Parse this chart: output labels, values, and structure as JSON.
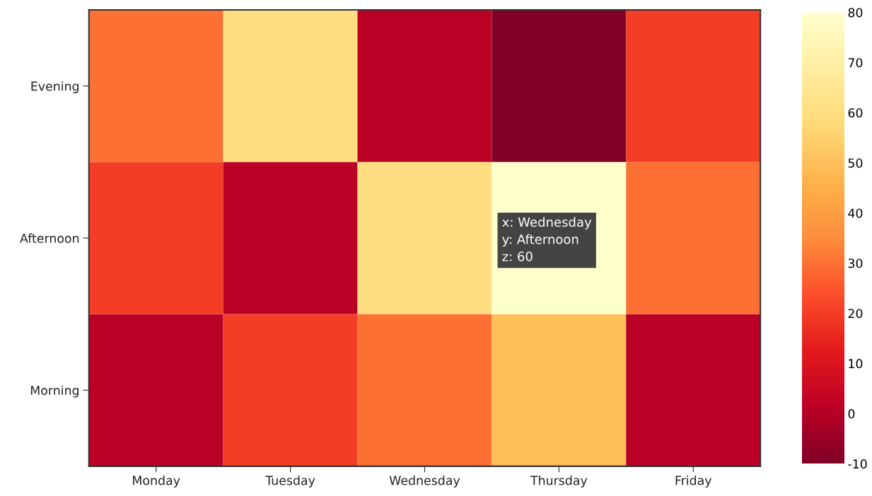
{
  "chart_data": {
    "type": "heatmap",
    "categories": [
      "Monday",
      "Tuesday",
      "Wednesday",
      "Thursday",
      "Friday"
    ],
    "y_categories": [
      "Evening",
      "Afternoon",
      "Morning"
    ],
    "cells": [
      [
        30,
        60,
        1,
        -10,
        20
      ],
      [
        20,
        1,
        60,
        80,
        30
      ],
      [
        1,
        20,
        30,
        50,
        1
      ]
    ],
    "clim": [
      -10,
      80
    ],
    "cticks": [
      -10,
      0,
      10,
      20,
      30,
      40,
      50,
      60,
      70,
      80
    ],
    "annotations": [
      "x: Wednesday\ny: Afternoon\nz: 60"
    ]
  }
}
